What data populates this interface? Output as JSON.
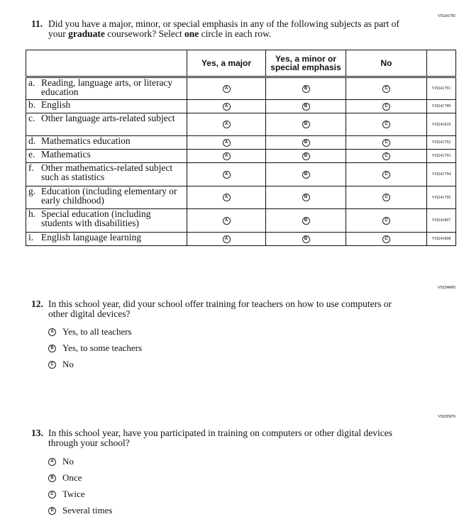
{
  "q11": {
    "code": "VH241785",
    "number": "11.",
    "text_parts": [
      "Did you have a major, minor, or special emphasis in any of the following subjects as part of your ",
      "graduate",
      " coursework? Select ",
      "one",
      " circle in each row."
    ],
    "columns": [
      "Yes, a major",
      "Yes, a minor or special emphasis",
      "No"
    ],
    "bubble_letters": [
      "A",
      "B",
      "C"
    ],
    "rows": [
      {
        "letter": "a.",
        "label": "Reading, language arts, or literacy education",
        "code": "VH241791"
      },
      {
        "letter": "b.",
        "label": "English",
        "code": "VH241789"
      },
      {
        "letter": "c.",
        "label": "Other language arts-related subject",
        "code": "VH241810"
      },
      {
        "letter": "d.",
        "label": "Mathematics education",
        "code": "VH241792"
      },
      {
        "letter": "e.",
        "label": "Mathematics",
        "code": "VH241793"
      },
      {
        "letter": "f.",
        "label": "Other mathematics-related subject such as statistics",
        "code": "VH241794"
      },
      {
        "letter": "g.",
        "label": "Education (including elementary or early childhood)",
        "code": "VH241795"
      },
      {
        "letter": "h.",
        "label": "Special education (including students with disabilities)",
        "code": "VH241807"
      },
      {
        "letter": "i.",
        "label": "English language learning",
        "code": "VH241808"
      }
    ]
  },
  "q12": {
    "code": "VH294995",
    "number": "12.",
    "text": "In this school year, did your school offer training for teachers on how to use computers or other digital devices?",
    "options": [
      {
        "letter": "A",
        "label": "Yes, to all teachers"
      },
      {
        "letter": "B",
        "label": "Yes, to some teachers"
      },
      {
        "letter": "C",
        "label": "No"
      }
    ]
  },
  "q13": {
    "code": "VH295076",
    "number": "13.",
    "text": "In this school year, have you participated in training on computers or other digital devices through your school?",
    "options": [
      {
        "letter": "A",
        "label": "No"
      },
      {
        "letter": "B",
        "label": "Once"
      },
      {
        "letter": "C",
        "label": "Twice"
      },
      {
        "letter": "D",
        "label": "Several times"
      }
    ]
  }
}
